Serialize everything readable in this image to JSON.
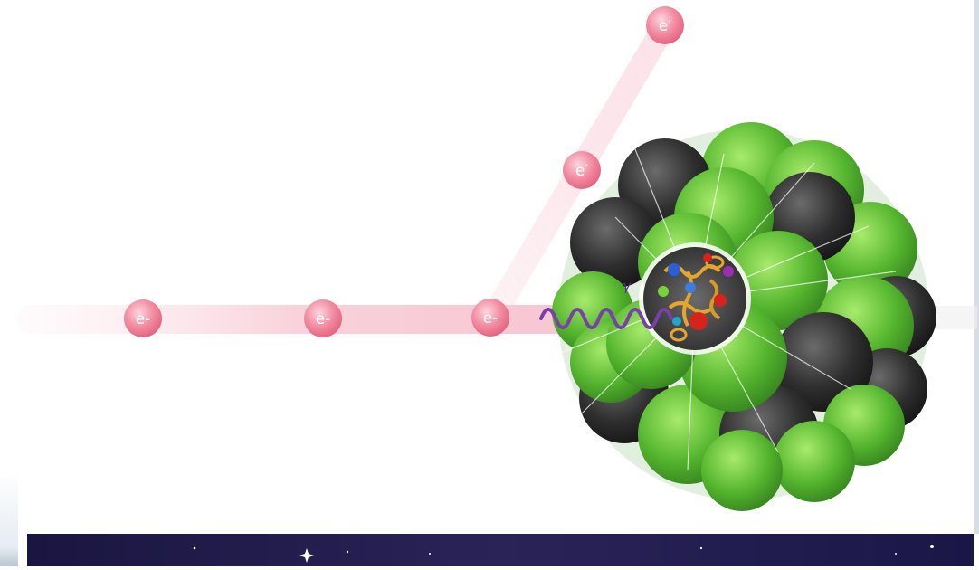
{
  "labels": {
    "electron_incoming": "e-",
    "electron_scattered": "e′",
    "photon": "γ"
  },
  "colors": {
    "beam": "#f6b9c6",
    "electron": "#ee6f88",
    "photon": "#6a3fa0",
    "green_nucleon": "#5fbf3a",
    "dark_nucleon": "#2b2b2b",
    "space": "#1c1747"
  },
  "icons": [
    "electron-icon",
    "photon-wave-icon",
    "nucleus-icon",
    "quark-gluon-core-icon",
    "star-icon"
  ]
}
